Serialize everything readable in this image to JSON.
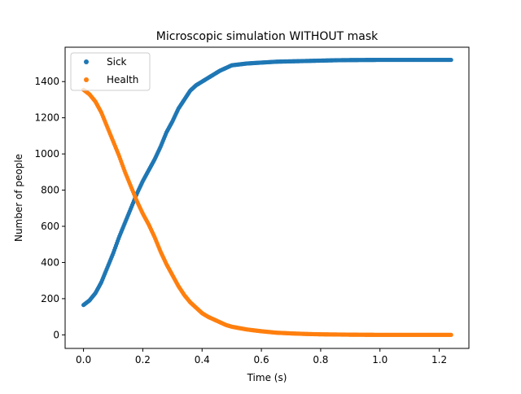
{
  "colors": {
    "sick": "#1f77b4",
    "health": "#ff7f0e",
    "axes": "#000000",
    "legend_border": "#cccccc"
  },
  "chart_data": {
    "type": "scatter",
    "title": "Microscopic simulation WITHOUT mask",
    "xlabel": "Time (s)",
    "ylabel": "Number of people",
    "xlim": [
      -0.062,
      1.3
    ],
    "ylim": [
      -75,
      1590
    ],
    "xticks": [
      0.0,
      0.2,
      0.4,
      0.6,
      0.8,
      1.0,
      1.2
    ],
    "xtick_labels": [
      "0.0",
      "0.2",
      "0.4",
      "0.6",
      "0.8",
      "1.0",
      "1.2"
    ],
    "yticks": [
      0,
      200,
      400,
      600,
      800,
      1000,
      1200,
      1400
    ],
    "ytick_labels": [
      "0",
      "200",
      "400",
      "600",
      "800",
      "1000",
      "1200",
      "1400"
    ],
    "grid": false,
    "legend": {
      "position": "top-left",
      "entries": [
        "Sick",
        "Health"
      ]
    },
    "x_range": [
      0.0,
      1.24
    ],
    "series": [
      {
        "name": "Sick",
        "color": "#1f77b4",
        "x": [
          0.0,
          0.02,
          0.04,
          0.06,
          0.08,
          0.1,
          0.12,
          0.14,
          0.16,
          0.18,
          0.2,
          0.22,
          0.24,
          0.26,
          0.28,
          0.3,
          0.32,
          0.34,
          0.36,
          0.38,
          0.4,
          0.42,
          0.44,
          0.46,
          0.48,
          0.5,
          0.55,
          0.6,
          0.65,
          0.7,
          0.75,
          0.8,
          0.85,
          0.9,
          1.0,
          1.1,
          1.24
        ],
        "y": [
          165,
          190,
          230,
          290,
          370,
          450,
          540,
          620,
          700,
          780,
          850,
          910,
          970,
          1040,
          1120,
          1180,
          1250,
          1300,
          1350,
          1380,
          1400,
          1420,
          1440,
          1460,
          1475,
          1490,
          1500,
          1505,
          1510,
          1512,
          1514,
          1516,
          1518,
          1519,
          1520,
          1520,
          1520
        ]
      },
      {
        "name": "Health",
        "color": "#ff7f0e",
        "x": [
          0.0,
          0.02,
          0.04,
          0.06,
          0.08,
          0.1,
          0.12,
          0.14,
          0.16,
          0.18,
          0.2,
          0.22,
          0.24,
          0.26,
          0.28,
          0.3,
          0.32,
          0.34,
          0.36,
          0.38,
          0.4,
          0.42,
          0.44,
          0.46,
          0.48,
          0.5,
          0.55,
          0.6,
          0.65,
          0.7,
          0.75,
          0.8,
          0.85,
          0.9,
          1.0,
          1.1,
          1.24
        ],
        "y": [
          1355,
          1330,
          1290,
          1230,
          1150,
          1070,
          990,
          900,
          820,
          740,
          670,
          610,
          540,
          460,
          390,
          330,
          270,
          220,
          180,
          150,
          120,
          100,
          85,
          70,
          55,
          45,
          30,
          20,
          12,
          8,
          5,
          3,
          2,
          1,
          0,
          0,
          0
        ]
      }
    ]
  }
}
